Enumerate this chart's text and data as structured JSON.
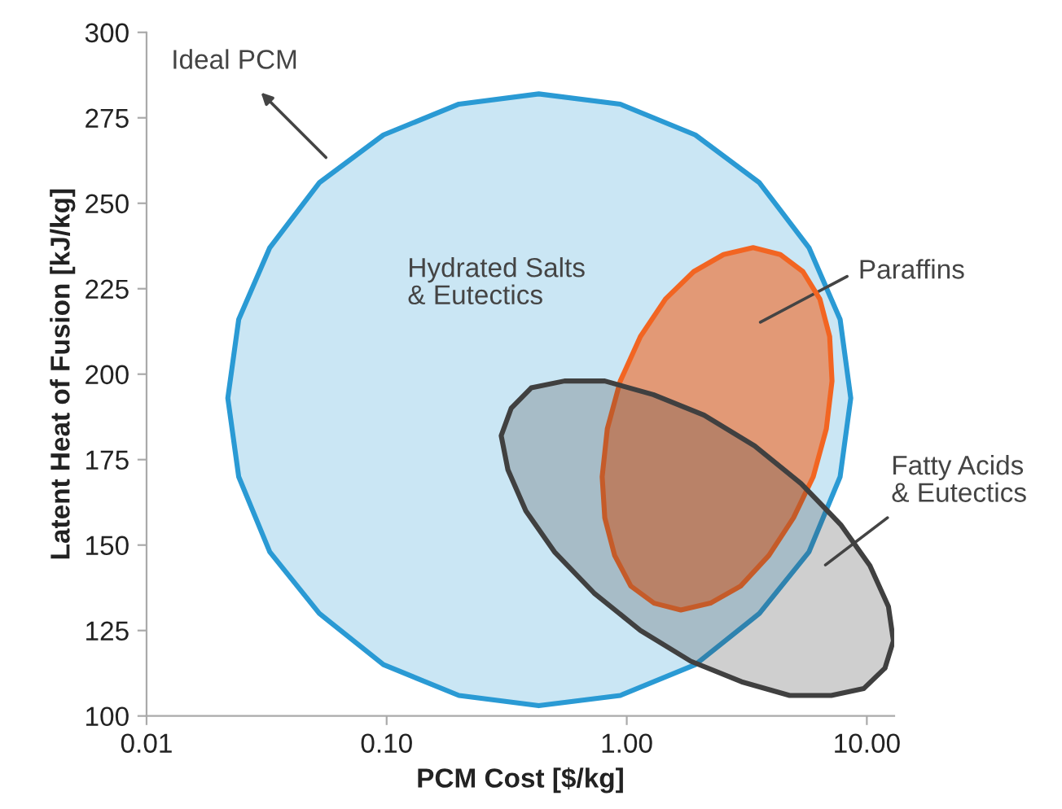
{
  "chart_data": {
    "type": "area",
    "xlabel": "PCM Cost [$/kg]",
    "ylabel": "Latent Heat of Fusion [kJ/kg]",
    "log": "x",
    "xlim": [
      0.01,
      13
    ],
    "xticks": [
      {
        "value": 0.01,
        "label": "0.01"
      },
      {
        "value": 0.1,
        "label": "0.10"
      },
      {
        "value": 1,
        "label": "1.00"
      },
      {
        "value": 10,
        "label": "10.00"
      }
    ],
    "ylim": [
      100,
      300
    ],
    "yticks": [
      100,
      125,
      150,
      175,
      200,
      225,
      250,
      275,
      300
    ],
    "grid": false,
    "legend": false,
    "series": [
      {
        "color": "#2a9ad4",
        "x": [
          8.57,
          7.74,
          5.74,
          3.57,
          1.93,
          0.94,
          0.43,
          0.2,
          0.097,
          0.0524,
          0.0326,
          0.0242,
          0.0218,
          0.0242,
          0.0326,
          0.0524,
          0.097,
          0.2,
          0.43,
          0.94,
          1.93,
          3.57,
          5.74,
          7.74
        ],
        "values": [
          193,
          216,
          237,
          256,
          270,
          279,
          282,
          279,
          270,
          256,
          237,
          216,
          193,
          170,
          148,
          130,
          115,
          106,
          103,
          106,
          115,
          130,
          148,
          170
        ]
      },
      {
        "color": "#f26522",
        "x": [
          6.78,
          7.16,
          7.0,
          6.37,
          5.42,
          4.36,
          3.36,
          2.53,
          1.9,
          1.45,
          1.14,
          0.94,
          0.83,
          0.79,
          0.81,
          0.89,
          1.04,
          1.3,
          1.68,
          2.23,
          2.98,
          3.91,
          4.95,
          5.98
        ],
        "values": [
          184,
          198,
          211,
          222,
          230,
          235,
          237,
          235,
          230,
          222,
          211,
          198,
          184,
          170,
          158,
          147,
          138,
          133,
          131,
          133,
          138,
          147,
          158,
          170
        ]
      },
      {
        "color": "#404040",
        "x": [
          11.9,
          12.9,
          12.3,
          10.3,
          7.78,
          5.32,
          3.41,
          2.1,
          1.29,
          0.81,
          0.55,
          0.4,
          0.33,
          0.3,
          0.32,
          0.38,
          0.5,
          0.73,
          1.14,
          1.85,
          3.01,
          4.77,
          7.11,
          9.7
        ],
        "values": [
          114,
          122,
          132,
          144,
          156,
          168,
          179,
          188,
          194,
          198,
          198,
          196,
          190,
          182,
          172,
          160,
          148,
          136,
          125,
          116,
          110,
          106,
          106,
          108
        ]
      }
    ],
    "annotations": [
      "Ideal PCM",
      "Hydrated Salts\n& Eutectics",
      "Paraffins",
      "Fatty Acids\n& Eutectics"
    ]
  }
}
